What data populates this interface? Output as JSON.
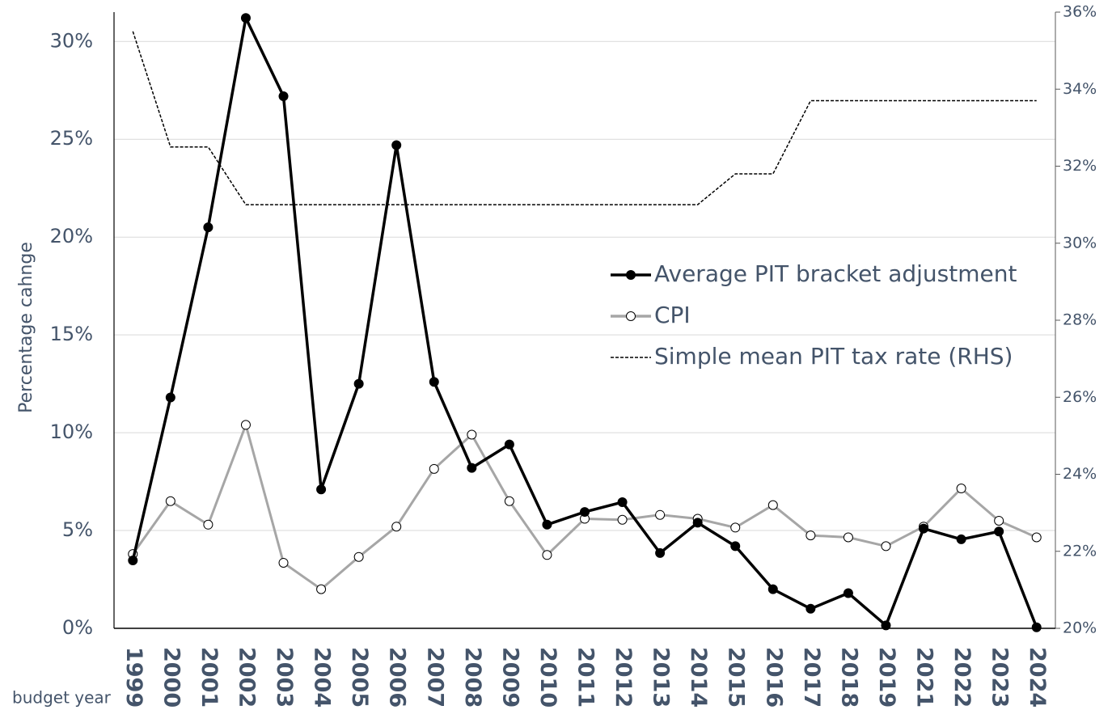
{
  "chart_data": {
    "type": "line",
    "y_label": "Percentage cahnge",
    "x_label": "budget year",
    "categories": [
      "1999",
      "2000",
      "2001",
      "2002",
      "2003",
      "2004",
      "2005",
      "2006",
      "2007",
      "2008",
      "2009",
      "2010",
      "2011",
      "2012",
      "2013",
      "2014",
      "2015",
      "2016",
      "2017",
      "2018",
      "2019",
      "2021",
      "2022",
      "2023",
      "2024"
    ],
    "series": [
      {
        "name": "Simple mean PIT tax rate (RHS)",
        "color": "#000000",
        "axis": "y2",
        "line_style": "dashed",
        "marker": "none",
        "values": [
          35.5,
          32.5,
          32.5,
          31.0,
          31.0,
          31.0,
          31.0,
          31.0,
          31.0,
          31.0,
          31.0,
          31.0,
          31.0,
          31.0,
          31.0,
          31.0,
          31.8,
          31.8,
          33.7,
          33.7,
          33.7,
          33.7,
          33.7,
          33.7,
          33.7
        ]
      },
      {
        "name": "CPI",
        "color": "#a6a6a6",
        "line_style": "solid",
        "marker": "open",
        "values": [
          3.8,
          6.5,
          5.3,
          10.4,
          3.35,
          2.0,
          3.65,
          5.2,
          8.15,
          9.9,
          6.5,
          3.75,
          5.6,
          5.55,
          5.8,
          5.6,
          5.15,
          6.3,
          4.75,
          4.65,
          4.2,
          5.2,
          7.15,
          5.5,
          4.65
        ]
      },
      {
        "name": "Average PIT bracket adjustment",
        "color": "#000000",
        "line_style": "solid",
        "marker": "filled",
        "values": [
          3.47,
          11.8,
          20.5,
          31.2,
          27.2,
          7.1,
          12.5,
          24.7,
          12.6,
          8.2,
          9.4,
          5.3,
          5.95,
          6.45,
          3.85,
          5.4,
          4.2,
          2.0,
          1.0,
          1.8,
          0.15,
          5.1,
          4.55,
          4.95,
          0.05
        ]
      }
    ],
    "ylim": [
      0,
      31.5
    ],
    "yticks": [
      {
        "value": 0,
        "label": "0%"
      },
      {
        "value": 5,
        "label": "5%"
      },
      {
        "value": 10,
        "label": "10%"
      },
      {
        "value": 15,
        "label": "15%"
      },
      {
        "value": 20,
        "label": "20%"
      },
      {
        "value": 25,
        "label": "25%"
      },
      {
        "value": 30,
        "label": "30%"
      }
    ],
    "y2lim": [
      20,
      36
    ],
    "y2ticks": [
      {
        "value": 20,
        "label": "20%"
      },
      {
        "value": 22,
        "label": "22%"
      },
      {
        "value": 24,
        "label": "24%"
      },
      {
        "value": 26,
        "label": "26%"
      },
      {
        "value": 28,
        "label": "28%"
      },
      {
        "value": 30,
        "label": "30%"
      },
      {
        "value": 32,
        "label": "32%"
      },
      {
        "value": 34,
        "label": "34%"
      },
      {
        "value": 36,
        "label": "36%"
      }
    ],
    "grid": true
  }
}
